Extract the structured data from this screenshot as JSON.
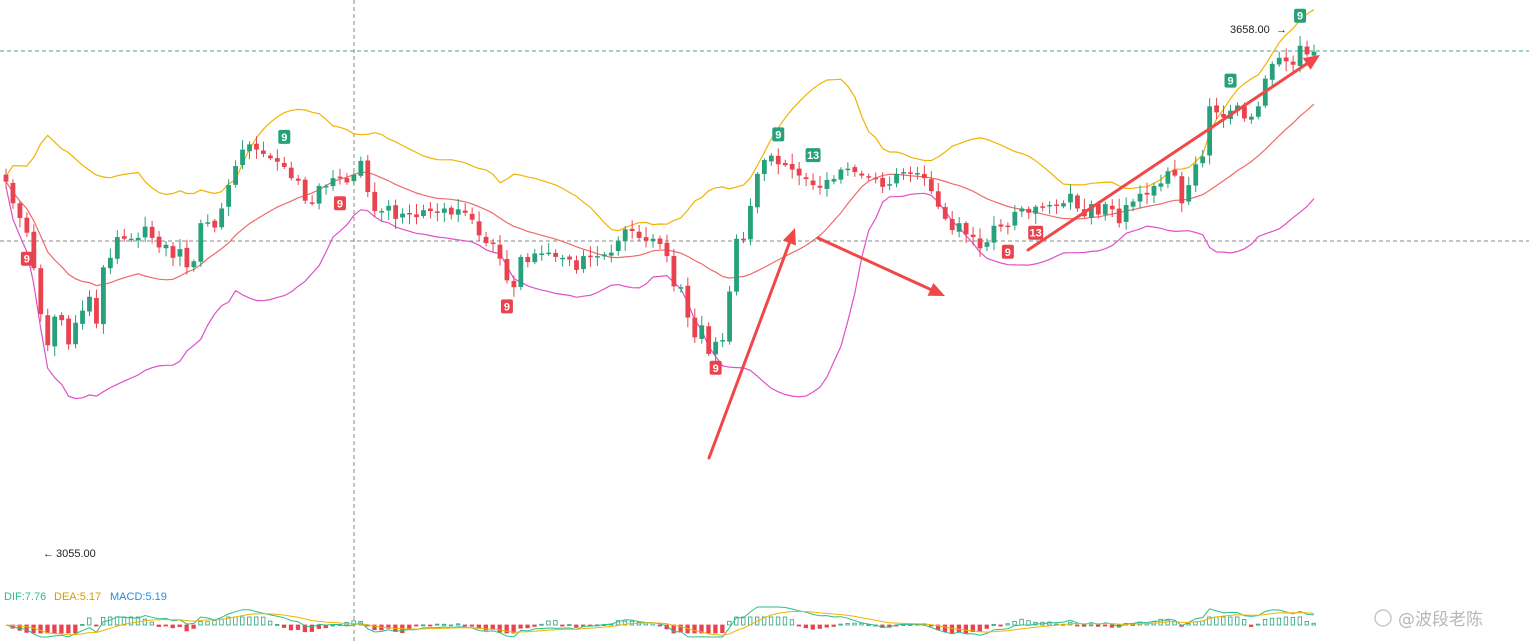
{
  "chart_data": {
    "type": "candlestick",
    "high_label": "3658.00",
    "low_label": "3055.00",
    "y_min": 3055,
    "y_max": 3658,
    "closes": [
      3484,
      3459,
      3442,
      3425,
      3384,
      3331,
      3295,
      3328,
      3324,
      3296,
      3321,
      3335,
      3351,
      3320,
      3385,
      3396,
      3420,
      3418,
      3418,
      3419,
      3432,
      3419,
      3408,
      3411,
      3396,
      3406,
      3385,
      3392,
      3436,
      3437,
      3431,
      3453,
      3480,
      3502,
      3521,
      3527,
      3521,
      3516,
      3511,
      3507,
      3501,
      3488,
      3485,
      3462,
      3459,
      3479,
      3479,
      3488,
      3489,
      3483,
      3492,
      3508,
      3472,
      3450,
      3450,
      3456,
      3441,
      3447,
      3446,
      3443,
      3451,
      3450,
      3448,
      3453,
      3446,
      3452,
      3448,
      3440,
      3422,
      3413,
      3412,
      3395,
      3370,
      3362,
      3397,
      3391,
      3401,
      3401,
      3402,
      3397,
      3396,
      3394,
      3382,
      3398,
      3397,
      3398,
      3400,
      3402,
      3416,
      3429,
      3427,
      3419,
      3416,
      3418,
      3412,
      3398,
      3363,
      3362,
      3327,
      3304,
      3318,
      3285,
      3299,
      3301,
      3357,
      3418,
      3417,
      3456,
      3493,
      3509,
      3514,
      3504,
      3503,
      3498,
      3491,
      3487,
      3480,
      3477,
      3486,
      3487,
      3498,
      3499,
      3495,
      3491,
      3490,
      3487,
      3478,
      3481,
      3493,
      3495,
      3494,
      3494,
      3488,
      3473,
      3455,
      3441,
      3428,
      3436,
      3423,
      3420,
      3407,
      3414,
      3433,
      3432,
      3433,
      3449,
      3453,
      3448,
      3455,
      3454,
      3457,
      3457,
      3459,
      3470,
      3453,
      3444,
      3458,
      3446,
      3458,
      3452,
      3436,
      3457,
      3461,
      3470,
      3469,
      3479,
      3482,
      3496,
      3491,
      3459,
      3480,
      3504,
      3513,
      3571,
      3564,
      3558,
      3566,
      3572,
      3557,
      3559,
      3571,
      3603,
      3620,
      3627,
      3623,
      3619,
      3641,
      3631,
      3634
    ],
    "upper_band_note": "Bollinger upper",
    "annotations": {
      "setup_labels": [
        {
          "text": "9",
          "color": "red"
        },
        {
          "text": "9",
          "color": "green"
        },
        {
          "text": "9",
          "color": "red"
        },
        {
          "text": "9",
          "color": "red"
        },
        {
          "text": "9",
          "color": "red"
        },
        {
          "text": "9",
          "color": "green"
        },
        {
          "text": "13",
          "color": "green"
        },
        {
          "text": "9",
          "color": "red"
        },
        {
          "text": "13",
          "color": "red"
        },
        {
          "text": "9",
          "color": "green"
        },
        {
          "text": "9",
          "color": "green"
        }
      ]
    },
    "macd": {
      "dif_label": "DIF:",
      "dif_value": "7.76",
      "dea_label": "DEA:",
      "dea_value": "5.17",
      "macd_label": "MACD:",
      "macd_value": "5.19"
    },
    "colors": {
      "up": "#26a17b",
      "down": "#e8434f",
      "upper": "#f0b400",
      "mid": "#f06a6a",
      "lower": "#e050c8",
      "arrow": "#f04848",
      "dif": "#2bbf8a",
      "dea": "#f0b400"
    }
  },
  "watermark": "@波段老陈"
}
